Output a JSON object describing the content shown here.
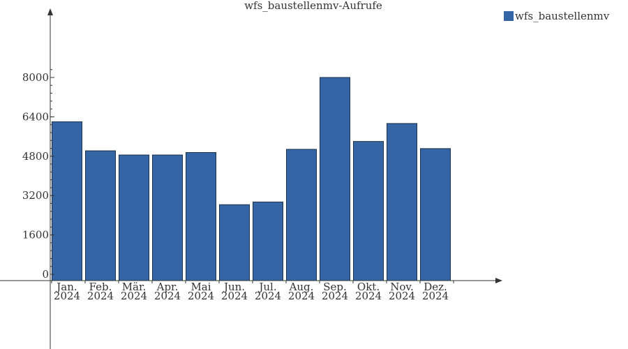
{
  "chart_data": {
    "type": "bar",
    "title": "wfs_baustellenmv-Aufrufe",
    "xlabel": "",
    "ylabel": "",
    "categories": [
      [
        "Jan.",
        "2024"
      ],
      [
        "Feb.",
        "2024"
      ],
      [
        "Mär.",
        "2024"
      ],
      [
        "Apr.",
        "2024"
      ],
      [
        "Mai",
        "2024"
      ],
      [
        "Jun.",
        "2024"
      ],
      [
        "Jul.",
        "2024"
      ],
      [
        "Aug.",
        "2024"
      ],
      [
        "Sep.",
        "2024"
      ],
      [
        "Okt.",
        "2024"
      ],
      [
        "Nov.",
        "2024"
      ],
      [
        "Dez.",
        "2024"
      ]
    ],
    "series": [
      {
        "name": "wfs_baustellenmv",
        "color": "#3465a4",
        "values": [
          6200,
          5020,
          4850,
          4850,
          4950,
          2830,
          2940,
          5080,
          8000,
          5400,
          6130,
          5110
        ]
      }
    ],
    "yticks": [
      0,
      1600,
      3200,
      4800,
      6400,
      8000
    ],
    "ylim": [
      -250,
      10800
    ],
    "grid": false,
    "legend_position": "top-right"
  }
}
